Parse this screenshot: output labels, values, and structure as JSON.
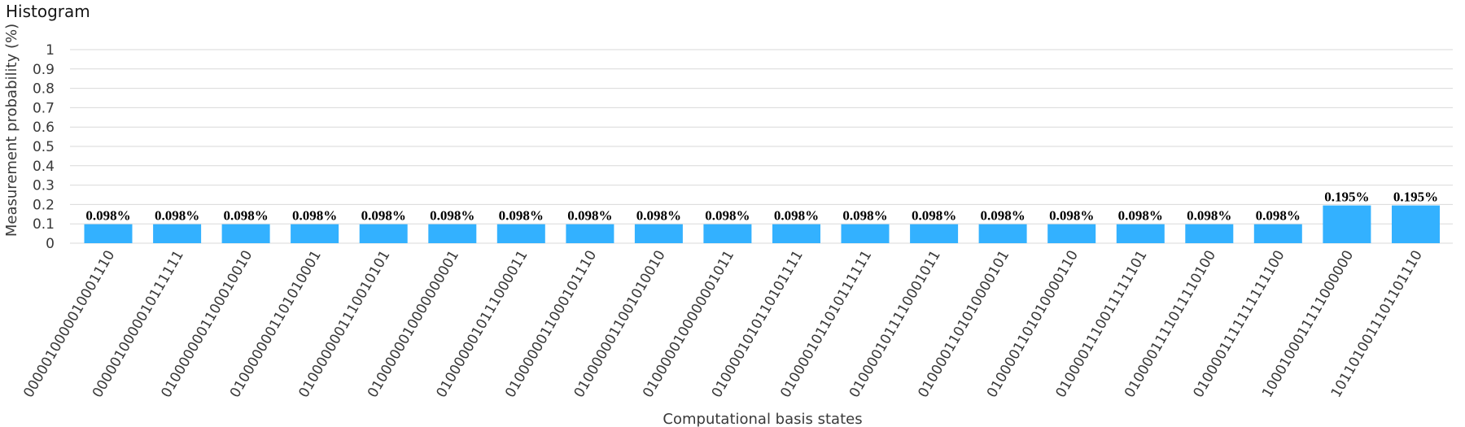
{
  "header": {
    "title": "Histogram"
  },
  "chart_data": {
    "type": "bar",
    "title": "Histogram",
    "xlabel": "Computational basis states",
    "ylabel": "Measurement probability (%)",
    "ylim": [
      0,
      1
    ],
    "yticks": [
      "0",
      "0.1",
      "0.2",
      "0.3",
      "0.4",
      "0.5",
      "0.6",
      "0.7",
      "0.8",
      "0.9",
      "1"
    ],
    "grid": true,
    "bar_color": "#33b1ff",
    "grid_color": "#d9d9d9",
    "categories": [
      "0000010000010001110",
      "0000010000010111111",
      "0100000001100010010",
      "0100000001101010001",
      "0100000001110010101",
      "0100000010000000001",
      "0100000010111000011",
      "0100000011000101110",
      "0100000011001010010",
      "0100000100000001011",
      "0100001010110101111",
      "0100001011010111111",
      "0100001011110001011",
      "0100001101010000101",
      "0100001101010000110",
      "0100001110011111101",
      "0100001111011110100",
      "0100001111111111100",
      "1000100011111000000",
      "1011010011101101110"
    ],
    "values": [
      0.098,
      0.098,
      0.098,
      0.098,
      0.098,
      0.098,
      0.098,
      0.098,
      0.098,
      0.098,
      0.098,
      0.098,
      0.098,
      0.098,
      0.098,
      0.098,
      0.098,
      0.098,
      0.195,
      0.195
    ],
    "data_labels": [
      "0.098%",
      "0.098%",
      "0.098%",
      "0.098%",
      "0.098%",
      "0.098%",
      "0.098%",
      "0.098%",
      "0.098%",
      "0.098%",
      "0.098%",
      "0.098%",
      "0.098%",
      "0.098%",
      "0.098%",
      "0.098%",
      "0.098%",
      "0.098%",
      "0.195%",
      "0.195%"
    ]
  }
}
